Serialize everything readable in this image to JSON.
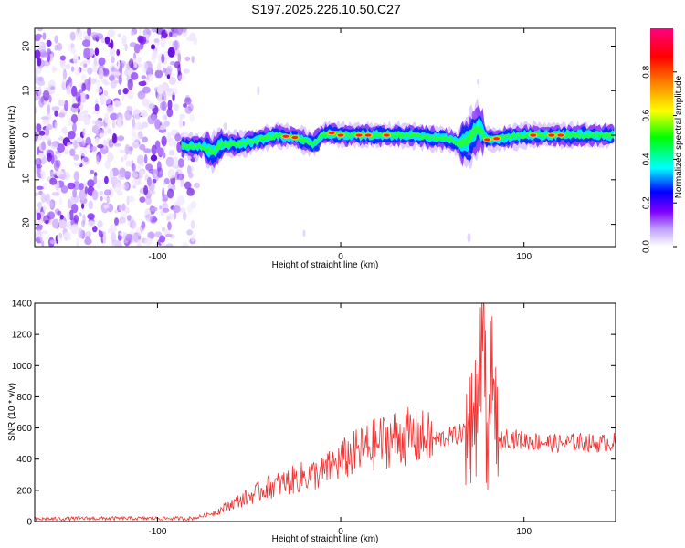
{
  "figure_title": "S197.2025.226.10.50.C27",
  "chart_data": [
    {
      "type": "heatmap",
      "title": "S197.2025.226.10.50.C27",
      "xlabel": "Height of straight line (km)",
      "ylabel": "Frequency (Hz)",
      "xlim": [
        -167,
        150
      ],
      "ylim": [
        -25,
        24
      ],
      "xticks": [
        -100,
        0,
        100
      ],
      "yticks": [
        -20,
        -10,
        0,
        10,
        20
      ],
      "colorbar": {
        "label": "Normalized spectral amplitude",
        "range": [
          0,
          1
        ],
        "ticks": [
          "0.0",
          "0.2",
          "0.4",
          "0.6",
          "0.8"
        ],
        "tick_values": [
          0,
          0.2,
          0.4,
          0.6,
          0.8
        ]
      },
      "noise_region_x": [
        -167,
        -78
      ],
      "signal_band": {
        "x_start": -87,
        "x": [
          -87,
          -75,
          -70,
          -65,
          -55,
          -45,
          -35,
          -25,
          -15,
          -10,
          -5,
          0,
          20,
          40,
          60,
          65,
          70,
          72,
          75,
          80,
          100,
          150
        ],
        "center_hz": [
          -2.5,
          -2.5,
          -4.0,
          -2.0,
          -2.0,
          -1.0,
          0.0,
          -0.5,
          -2.0,
          0.0,
          0.5,
          0.0,
          0.0,
          0.0,
          -1.0,
          -2.0,
          -1.0,
          0.0,
          2.0,
          -1.0,
          0.0,
          0.0
        ],
        "peaks_x": [
          -30,
          -25,
          -5,
          0,
          10,
          15,
          25,
          80,
          85,
          105,
          115,
          120
        ]
      },
      "colors": [
        "#ffffff",
        "#8000ff",
        "#0000ff",
        "#00ffff",
        "#00ff00",
        "#ffff00",
        "#ff8000",
        "#ff0000",
        "#ff0080"
      ]
    },
    {
      "type": "line",
      "xlabel": "Height of straight line (km)",
      "ylabel": "SNR (10 * v/v)",
      "xlim": [
        -167,
        150
      ],
      "ylim": [
        0,
        1400
      ],
      "xticks": [
        -100,
        0,
        100
      ],
      "yticks": [
        0,
        200,
        400,
        600,
        800,
        1000,
        1200,
        1400
      ],
      "series": [
        {
          "name": "SNR",
          "color": "#ee3333",
          "x": [
            -167,
            -140,
            -110,
            -80,
            -68,
            -60,
            -50,
            -40,
            -30,
            -20,
            -10,
            0,
            10,
            20,
            30,
            40,
            50,
            60,
            65,
            70,
            74,
            76,
            78,
            80,
            82,
            84,
            86,
            90,
            100,
            110,
            120,
            130,
            140,
            150
          ],
          "y": [
            15,
            20,
            20,
            20,
            60,
            110,
            160,
            220,
            250,
            290,
            310,
            390,
            450,
            500,
            540,
            545,
            520,
            545,
            560,
            600,
            700,
            950,
            1400,
            300,
            1100,
            750,
            500,
            540,
            520,
            510,
            500,
            510,
            500,
            510
          ]
        }
      ]
    }
  ]
}
